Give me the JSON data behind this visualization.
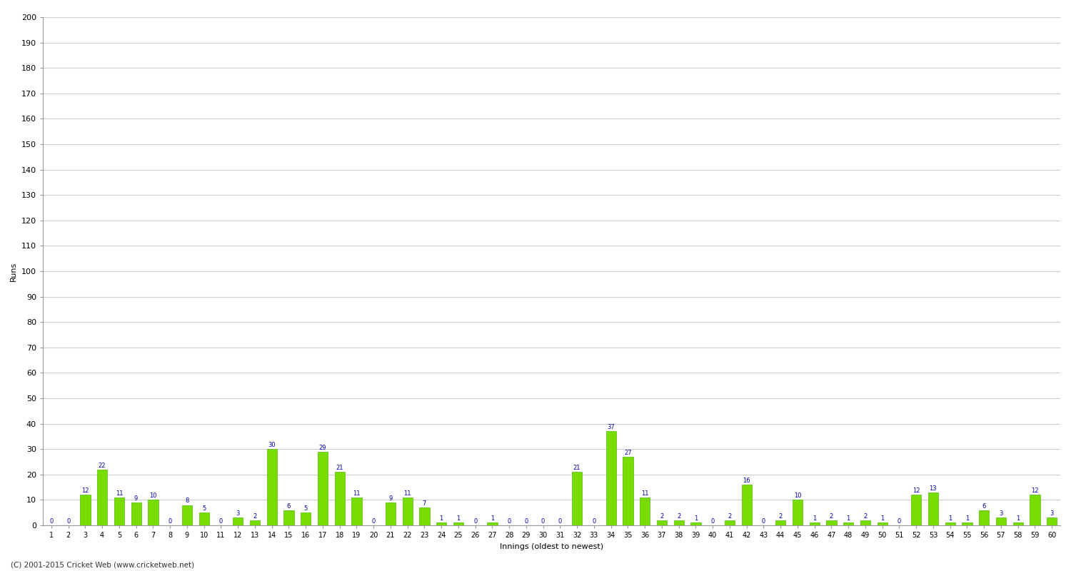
{
  "xlabel": "Innings (oldest to newest)",
  "ylabel": "Runs",
  "values": [
    0,
    0,
    12,
    22,
    11,
    9,
    10,
    0,
    8,
    5,
    0,
    3,
    2,
    30,
    6,
    5,
    29,
    21,
    11,
    0,
    9,
    11,
    7,
    1,
    1,
    0,
    1,
    0,
    0,
    0,
    0,
    21,
    0,
    37,
    27,
    11,
    2,
    2,
    1,
    0,
    2,
    16,
    0,
    2,
    10,
    1,
    2,
    1,
    2,
    1,
    0,
    12,
    13,
    1,
    1,
    6,
    3,
    1,
    12,
    3
  ],
  "bar_color": "#77dd00",
  "bar_edge_color": "#55bb00",
  "label_color": "#0000aa",
  "background_color": "#ffffff",
  "grid_color": "#cccccc",
  "ylim": [
    0,
    200
  ],
  "yticks": [
    0,
    10,
    20,
    30,
    40,
    50,
    60,
    70,
    80,
    90,
    100,
    110,
    120,
    130,
    140,
    150,
    160,
    170,
    180,
    190,
    200
  ],
  "footer": "(C) 2001-2015 Cricket Web (www.cricketweb.net)"
}
